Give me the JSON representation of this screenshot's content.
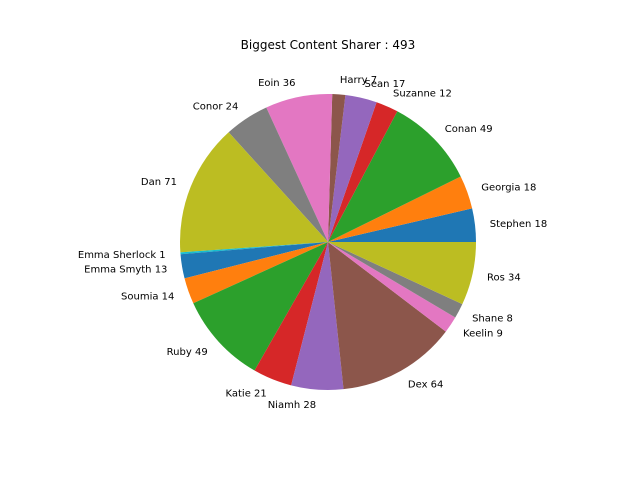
{
  "chart_data": {
    "type": "pie",
    "title": "Biggest Content Sharer : 493",
    "start_angle_deg": 0,
    "direction": "counterclockwise",
    "slices": [
      {
        "label": "Stephen 18",
        "value": 18,
        "color": "#1f77b4"
      },
      {
        "label": "Georgia 18",
        "value": 18,
        "color": "#ff7f0e"
      },
      {
        "label": "Conan 49",
        "value": 49,
        "color": "#2ca02c"
      },
      {
        "label": "Suzanne 12",
        "value": 12,
        "color": "#d62728"
      },
      {
        "label": "Sean 17",
        "value": 17,
        "color": "#9467bd"
      },
      {
        "label": "Harry 7",
        "value": 7,
        "color": "#8c564b"
      },
      {
        "label": "Eoin 36",
        "value": 36,
        "color": "#e377c2"
      },
      {
        "label": "Conor 24",
        "value": 24,
        "color": "#7f7f7f"
      },
      {
        "label": "Dan 71",
        "value": 71,
        "color": "#bcbd22"
      },
      {
        "label": "Emma Sherlock 1",
        "value": 1,
        "color": "#17becf"
      },
      {
        "label": "Emma Smyth 13",
        "value": 13,
        "color": "#1f77b4"
      },
      {
        "label": "Soumia 14",
        "value": 14,
        "color": "#ff7f0e"
      },
      {
        "label": "Ruby 49",
        "value": 49,
        "color": "#2ca02c"
      },
      {
        "label": "Katie 21",
        "value": 21,
        "color": "#d62728"
      },
      {
        "label": "Niamh 28",
        "value": 28,
        "color": "#9467bd"
      },
      {
        "label": "Dex 64",
        "value": 64,
        "color": "#8c564b"
      },
      {
        "label": "Keelin 9",
        "value": 9,
        "color": "#e377c2"
      },
      {
        "label": "Shane 8",
        "value": 8,
        "color": "#7f7f7f"
      },
      {
        "label": "Ros 34",
        "value": 34,
        "color": "#bcbd22"
      }
    ]
  }
}
